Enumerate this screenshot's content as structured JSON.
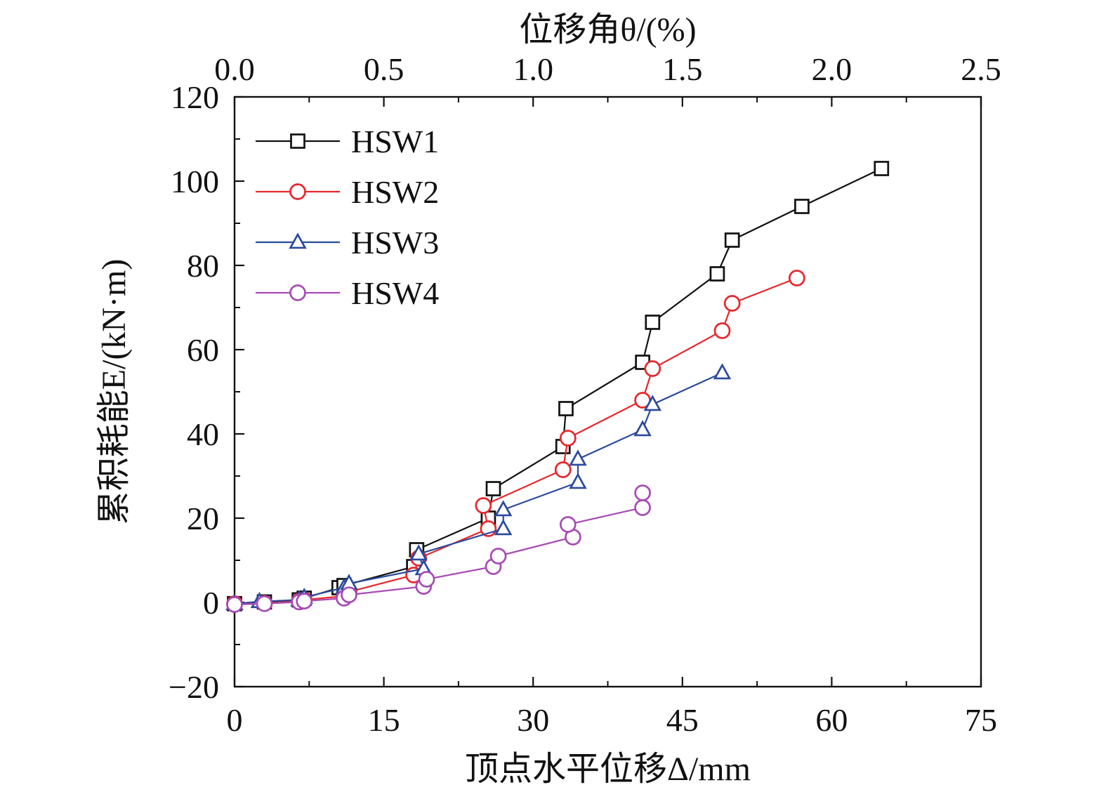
{
  "chart_data": {
    "type": "line",
    "title": "",
    "xlabel": "顶点水平位移Δ/mm",
    "ylabel": "累积耗能E/(kN·m)",
    "x2label": "位移角θ/(%)",
    "xlim": [
      0,
      75
    ],
    "ylim": [
      -20,
      120
    ],
    "x2lim": [
      0,
      2.5
    ],
    "x_ticks": [
      0,
      15,
      30,
      45,
      60,
      75
    ],
    "y_ticks": [
      -20,
      0,
      20,
      40,
      60,
      80,
      100,
      120
    ],
    "x2_ticks": [
      0.0,
      0.5,
      1.0,
      1.5,
      2.0,
      2.5
    ],
    "x_tick_labels": [
      "0",
      "15",
      "30",
      "45",
      "60",
      "75"
    ],
    "y_tick_labels": [
      "−20",
      "0",
      "20",
      "40",
      "60",
      "80",
      "100",
      "120"
    ],
    "x2_tick_labels": [
      "0.0",
      "0.5",
      "1.0",
      "1.5",
      "2.0",
      "2.5"
    ],
    "legend_position": "top-left",
    "grid": false,
    "series": [
      {
        "name": "HSW1",
        "color": "#111111",
        "marker": "square",
        "points": [
          [
            0,
            -0.3
          ],
          [
            3.0,
            0.1
          ],
          [
            6.5,
            0.6
          ],
          [
            7.0,
            1.0
          ],
          [
            10.5,
            3.5
          ],
          [
            11.0,
            4.0
          ],
          [
            18.0,
            8.5
          ],
          [
            18.3,
            12.5
          ],
          [
            25.5,
            20.0
          ],
          [
            26.0,
            27.0
          ],
          [
            33.0,
            37.0
          ],
          [
            33.3,
            46.0
          ],
          [
            41.0,
            57.0
          ],
          [
            42.0,
            66.5
          ],
          [
            48.5,
            78.0
          ],
          [
            50.0,
            86.0
          ],
          [
            57.0,
            94.0
          ],
          [
            65.0,
            103.0
          ]
        ]
      },
      {
        "name": "HSW2",
        "color": "#e8262b",
        "marker": "circle",
        "points": [
          [
            0,
            -0.3
          ],
          [
            3.0,
            -0.2
          ],
          [
            6.5,
            0.3
          ],
          [
            7.0,
            0.6
          ],
          [
            11.0,
            1.5
          ],
          [
            11.5,
            2.5
          ],
          [
            18.0,
            6.5
          ],
          [
            18.5,
            10.5
          ],
          [
            25.5,
            17.5
          ],
          [
            25.0,
            23.0
          ],
          [
            33.0,
            31.5
          ],
          [
            33.5,
            39.0
          ],
          [
            41.0,
            48.0
          ],
          [
            42.0,
            55.5
          ],
          [
            49.0,
            64.5
          ],
          [
            50.0,
            71.0
          ],
          [
            56.5,
            77.0
          ]
        ]
      },
      {
        "name": "HSW3",
        "color": "#2a4a9e",
        "marker": "triangle",
        "points": [
          [
            0,
            -0.3
          ],
          [
            2.5,
            0.2
          ],
          [
            6.5,
            0.6
          ],
          [
            7.0,
            1.2
          ],
          [
            11.0,
            3.5
          ],
          [
            11.5,
            4.5
          ],
          [
            19.0,
            8.0
          ],
          [
            18.5,
            11.5
          ],
          [
            27.0,
            17.5
          ],
          [
            27.0,
            22.0
          ],
          [
            34.5,
            28.5
          ],
          [
            34.5,
            34.0
          ],
          [
            41.0,
            41.0
          ],
          [
            42.0,
            47.0
          ],
          [
            49.0,
            54.5
          ]
        ]
      },
      {
        "name": "HSW4",
        "color": "#a74ab4",
        "marker": "circle",
        "points": [
          [
            0,
            -0.5
          ],
          [
            3.0,
            -0.3
          ],
          [
            6.5,
            0.1
          ],
          [
            7.0,
            0.3
          ],
          [
            11.0,
            1.0
          ],
          [
            11.5,
            1.8
          ],
          [
            19.0,
            3.8
          ],
          [
            19.3,
            5.5
          ],
          [
            26.0,
            8.5
          ],
          [
            26.5,
            11.0
          ],
          [
            34.0,
            15.5
          ],
          [
            33.5,
            18.5
          ],
          [
            41.0,
            22.5
          ],
          [
            41.0,
            26.0
          ]
        ]
      }
    ]
  }
}
